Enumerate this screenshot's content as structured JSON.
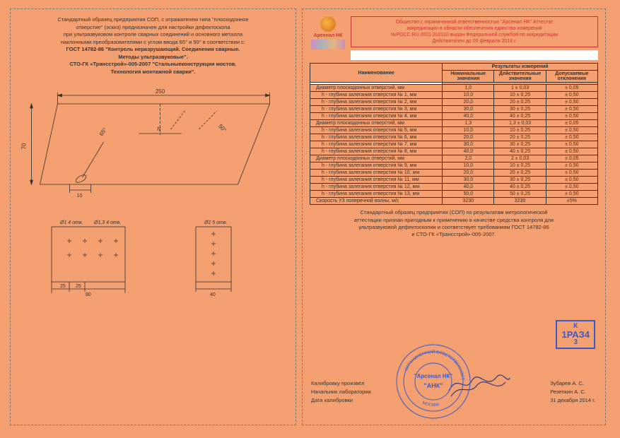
{
  "colors": {
    "bg": "#f5a070",
    "border_dash": "#777777",
    "text": "#333333",
    "red": "#c23333",
    "blue": "#3a5bcc",
    "white": "#ffffff",
    "line": "#333333"
  },
  "left": {
    "intro_lines": [
      "Стандартный образец предприятия СОП, с отражателем типа \"плоскодонное",
      "отверстие\" (эскиз) предназначен для настройки дефектоскопа",
      "при ультразвуковом контроле сварных соединений и основного металла",
      "наклонными преобразователями с углом ввода 65° и 50° в соответствии с:"
    ],
    "gost1": "ГОСТ 14782-86 \"Контроль неразрушающий. Соединения сварные.",
    "gost1b": "Методы ультразвуковые\".",
    "gost2": "СТО-ГК «Трансстрой»-005-2007 \"Стальныеконструкции мостов.",
    "gost2b": "Технология монтажной сварки\".",
    "main_dim_top": "250",
    "main_dim_left": "70",
    "main_angle1": "65°",
    "main_angle2": "50°",
    "main_h": "h",
    "main_small": "10",
    "small1_label": "Ø1  4 отв.",
    "small1_label2": "Ø1,3  4 отв.",
    "small1_dim1": "25",
    "small1_dim2": "25",
    "small1_dim3": "80",
    "small2_label": "Ø2  5 отв.",
    "small2_dim": "40"
  },
  "right": {
    "accredit": [
      "Общество с ограниченной ответственностью \"Арсенал НК\" Аттестат",
      "аккредитации в области обеспечения единства измерений",
      "№РОСС.RU.0001.310110 выдан Федеральной службой по аккредитации",
      "Действителен до 05 февраля 2018 г."
    ],
    "logo": "Арсенал НК",
    "table": {
      "head_name": "Наименование",
      "head_results": "Результаты измерений",
      "sub_nom": "Номинальные значения",
      "sub_act": "Действительные значения",
      "sub_tol": "Допускаемые отклонения",
      "rows": [
        {
          "name": "Диаметр плоскодонных отверстий, мм",
          "sub": false,
          "nom": "1,0",
          "act": "1 ± 0,03",
          "tol": "±  0,05"
        },
        {
          "name": "h - глубина залегания отверстия № 1, мм",
          "sub": true,
          "nom": "10,0",
          "act": "10 ± 0,25",
          "tol": "±  0,50"
        },
        {
          "name": "h - глубина залегания отверстия № 2, мм",
          "sub": true,
          "nom": "20,0",
          "act": "20 ± 0,25",
          "tol": "±  0,50"
        },
        {
          "name": "h - глубина залегания отверстия № 3, мм",
          "sub": true,
          "nom": "30,0",
          "act": "30 ± 0,25",
          "tol": "±  0,50"
        },
        {
          "name": "h - глубина залегания отверстия № 4, мм",
          "sub": true,
          "nom": "40,0",
          "act": "40 ± 0,25",
          "tol": "±  0,50"
        },
        {
          "name": "Диаметр плоскодонных отверстий, мм",
          "sub": false,
          "nom": "1,3",
          "act": "1,3 ± 0,03",
          "tol": "±  0,05"
        },
        {
          "name": "h - глубина залегания отверстия № 5, мм",
          "sub": true,
          "nom": "10,0",
          "act": "10 ± 0,25",
          "tol": "±  0,50"
        },
        {
          "name": "h - глубина залегания отверстия № 6, мм",
          "sub": true,
          "nom": "20,0",
          "act": "20 ± 0,25",
          "tol": "±  0,50"
        },
        {
          "name": "h - глубина залегания отверстия № 7, мм",
          "sub": true,
          "nom": "30,0",
          "act": "30 ± 0,25",
          "tol": "±  0,50"
        },
        {
          "name": "h - глубина залегания отверстия № 8, мм",
          "sub": true,
          "nom": "40,0",
          "act": "40 ± 0,25",
          "tol": "±  0,50"
        },
        {
          "name": "Диаметр плоскодонных отверстий, мм",
          "sub": false,
          "nom": "2,0",
          "act": "2 ± 0,03",
          "tol": "±  0,05"
        },
        {
          "name": "h - глубина залегания отверстия № 9, мм",
          "sub": true,
          "nom": "10,0",
          "act": "10 ± 0,25",
          "tol": "±  0,50"
        },
        {
          "name": "h - глубина залегания отверстия № 10, мм",
          "sub": true,
          "nom": "20,0",
          "act": "20 ± 0,25",
          "tol": "±  0,50"
        },
        {
          "name": "h - глубина залегания отверстия № 11, мм",
          "sub": true,
          "nom": "30,0",
          "act": "30 ± 0,25",
          "tol": "±  0,50"
        },
        {
          "name": "h - глубина залегания отверстия № 12, мм",
          "sub": true,
          "nom": "40,0",
          "act": "40 ± 0,25",
          "tol": "±  0,50"
        },
        {
          "name": "h - глубина залегания отверстия № 13, мм",
          "sub": true,
          "nom": "50,0",
          "act": "50 ± 0,25",
          "tol": "±  0,50"
        },
        {
          "name": "Скорость УЗ поперечной волны, м/с",
          "sub": false,
          "nom": "3230",
          "act": "3230",
          "tol": "±5%"
        }
      ]
    },
    "conclusion": [
      "Стандартный образец предприятия (СОП) по результатам метрологической",
      "аттестации признан пригодным к применению в качестве средства контроля для",
      "ультразвуковой дефектоскопии и соответствует требованиям ГОСТ 14782-86",
      "и СТО-ГК «Трансстрой»-005-2007."
    ],
    "stamp_k": {
      "top": "К",
      "mid": "1РАЗ4",
      "bot": "3"
    },
    "sign_labels": {
      "l1": "Калибровку произвёл",
      "l2": "Начальник лаборатории",
      "l3": "Дата калибровки"
    },
    "sign_values": {
      "v1": "Зубарев А. С.",
      "v2": "Резепкин А. С.",
      "v3": "31 декабря        2014 г."
    },
    "stamp_inner1": "\"Арсенал НК\"",
    "stamp_inner2": "\"АНК\"",
    "stamp_city": "МОСКВА"
  }
}
